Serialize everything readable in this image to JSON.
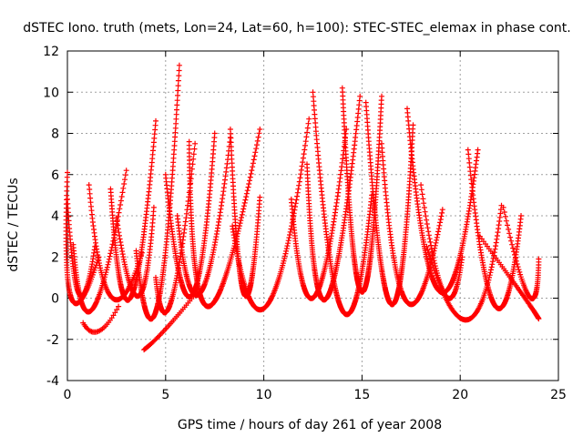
{
  "chart_data": {
    "type": "scatter",
    "title": "dSTEC Iono. truth (mets, Lon=24, Lat=60, h=100): STEC-STEC_elemax in phase cont.",
    "xlabel": "GPS time / hours of day 261 of year 2008",
    "ylabel": "dSTEC  / TECUs",
    "xlim": [
      0,
      25
    ],
    "ylim": [
      -4,
      12
    ],
    "xticks": [
      "0",
      "5",
      "10",
      "15",
      "20",
      "25"
    ],
    "yticks": [
      "-4",
      "-2",
      "0",
      "2",
      "4",
      "6",
      "8",
      "10",
      "12"
    ],
    "grid": true,
    "marker": "+",
    "color": "#ff0000",
    "arcs": [
      {
        "t0": 0.0,
        "tm": 0.2,
        "t1": 1.6,
        "y0": 6.1,
        "ym": 0.0,
        "y1": 2.0
      },
      {
        "t0": 0.0,
        "tm": 0.6,
        "t1": 1.4,
        "y0": 4.8,
        "ym": 0.2,
        "y1": 2.5
      },
      {
        "t0": 0.3,
        "tm": 1.3,
        "t1": 3.0,
        "y0": 2.6,
        "ym": -0.5,
        "y1": 6.2
      },
      {
        "t0": 1.1,
        "tm": 2.2,
        "t1": 3.8,
        "y0": 5.5,
        "ym": 0.1,
        "y1": 2.2
      },
      {
        "t0": 0.8,
        "tm": 1.6,
        "t1": 2.6,
        "y0": -1.2,
        "ym": -1.6,
        "y1": -0.4
      },
      {
        "t0": 2.2,
        "tm": 3.2,
        "t1": 4.5,
        "y0": 5.3,
        "ym": 0.0,
        "y1": 8.6
      },
      {
        "t0": 2.5,
        "tm": 3.6,
        "t1": 4.4,
        "y0": 3.9,
        "ym": 0.1,
        "y1": 4.4
      },
      {
        "t0": 3.5,
        "tm": 4.6,
        "t1": 5.7,
        "y0": 2.3,
        "ym": -0.3,
        "y1": 11.3
      },
      {
        "t0": 3.9,
        "tm": 5.0,
        "t1": 6.6,
        "y0": -2.5,
        "ym": -1.5,
        "y1": 0.3
      },
      {
        "t0": 4.5,
        "tm": 5.3,
        "t1": 6.5,
        "y0": 1.0,
        "ym": -0.1,
        "y1": 7.5
      },
      {
        "t0": 5.0,
        "tm": 6.3,
        "t1": 7.5,
        "y0": 6.0,
        "ym": 0.1,
        "y1": 8.0
      },
      {
        "t0": 6.2,
        "tm": 7.2,
        "t1": 9.8,
        "y0": 7.6,
        "ym": -0.4,
        "y1": 8.2
      },
      {
        "t0": 5.6,
        "tm": 6.8,
        "t1": 8.3,
        "y0": 4.0,
        "ym": 0.3,
        "y1": 7.8
      },
      {
        "t0": 8.3,
        "tm": 9.0,
        "t1": 9.8,
        "y0": 8.2,
        "ym": 0.2,
        "y1": 4.9
      },
      {
        "t0": 8.4,
        "tm": 10.2,
        "t1": 12.3,
        "y0": 3.5,
        "ym": -0.3,
        "y1": 8.7
      },
      {
        "t0": 11.4,
        "tm": 12.6,
        "t1": 14.2,
        "y0": 4.8,
        "ym": 0.1,
        "y1": 8.2
      },
      {
        "t0": 12.2,
        "tm": 13.2,
        "t1": 14.9,
        "y0": 6.5,
        "ym": 0.0,
        "y1": 9.8
      },
      {
        "t0": 12.5,
        "tm": 14.0,
        "t1": 15.5,
        "y0": 10.0,
        "ym": -0.6,
        "y1": 5.0
      },
      {
        "t0": 14.0,
        "tm": 15.0,
        "t1": 16.0,
        "y0": 10.2,
        "ym": 0.3,
        "y1": 9.8
      },
      {
        "t0": 15.2,
        "tm": 16.5,
        "t1": 17.6,
        "y0": 9.5,
        "ym": -0.3,
        "y1": 8.4
      },
      {
        "t0": 16.0,
        "tm": 17.3,
        "t1": 19.1,
        "y0": 7.5,
        "ym": -0.2,
        "y1": 4.3
      },
      {
        "t0": 17.3,
        "tm": 19.0,
        "t1": 20.9,
        "y0": 9.2,
        "ym": 0.3,
        "y1": 7.2
      },
      {
        "t0": 18.0,
        "tm": 19.2,
        "t1": 20.1,
        "y0": 5.5,
        "ym": 0.2,
        "y1": 2.0
      },
      {
        "t0": 18.3,
        "tm": 20.5,
        "t1": 22.1,
        "y0": 2.5,
        "ym": -1.0,
        "y1": 4.5
      },
      {
        "t0": 20.4,
        "tm": 21.8,
        "t1": 23.1,
        "y0": 7.2,
        "ym": -0.4,
        "y1": 4.0
      },
      {
        "t0": 22.2,
        "tm": 23.5,
        "t1": 24.0,
        "y0": 4.4,
        "ym": 0.1,
        "y1": 1.9
      },
      {
        "t0": 21.0,
        "tm": 23.0,
        "t1": 24.0,
        "y0": 3.0,
        "ym": 0.4,
        "y1": -1.0
      }
    ]
  }
}
